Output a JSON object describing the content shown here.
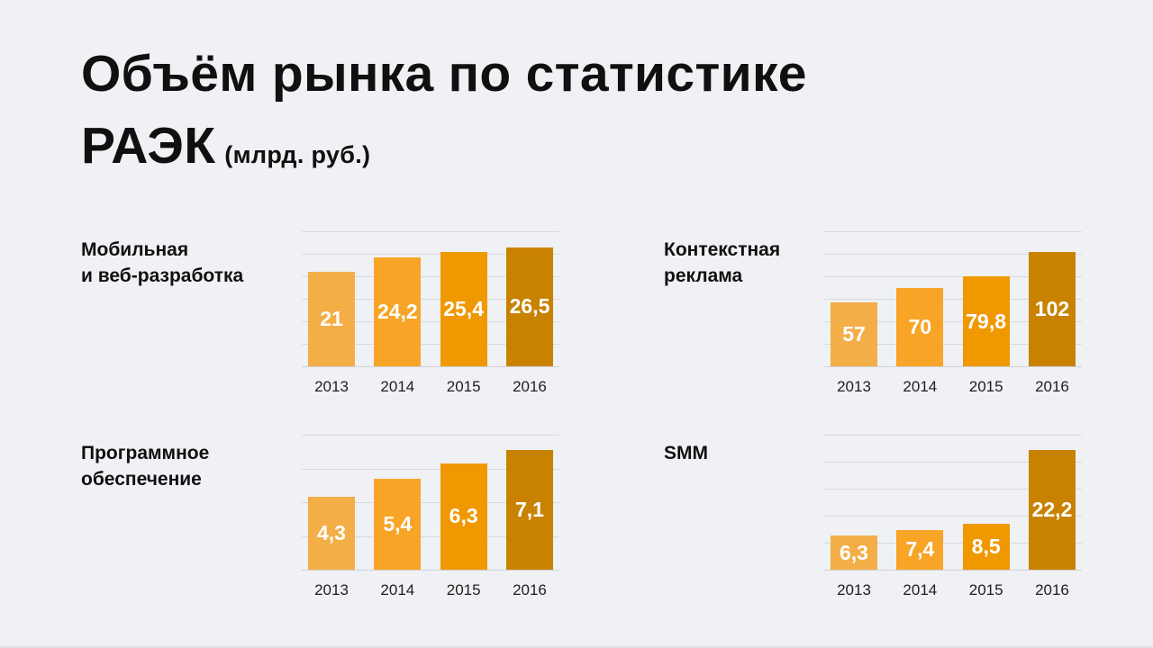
{
  "title": {
    "line1": "Объём рынка по статистике",
    "line2": "РАЭК",
    "unit": "(млрд. руб.)"
  },
  "colors": {
    "background": "#F0F1F4",
    "text": "#101010",
    "gridline": "#D7D9DD",
    "value_label": "#FFFFFF",
    "bar_series": [
      "#F4AE47",
      "#F7A427",
      "#F09800",
      "#C98200"
    ]
  },
  "chart_data": [
    {
      "type": "bar",
      "name": "mobile-and-web-development",
      "title": "Мобильная и веб-разработка",
      "title_lines": [
        "Мобильная",
        "и веб-разработка"
      ],
      "categories": [
        "2013",
        "2014",
        "2015",
        "2016"
      ],
      "values": [
        21,
        24.2,
        25.4,
        26.5
      ],
      "value_labels": [
        "21",
        "24,2",
        "25,4",
        "26,5"
      ],
      "ylim": [
        0,
        30
      ],
      "gridline_step": 5,
      "grid": true,
      "legend": false
    },
    {
      "type": "bar",
      "name": "contextual-advertising",
      "title": "Контекстная реклама",
      "title_lines": [
        "Контекстная",
        "реклама"
      ],
      "categories": [
        "2013",
        "2014",
        "2015",
        "2016"
      ],
      "values": [
        57,
        70,
        79.8,
        102
      ],
      "value_labels": [
        "57",
        "70",
        "79,8",
        "102"
      ],
      "ylim": [
        0,
        120
      ],
      "gridline_step": 20,
      "grid": true,
      "legend": false
    },
    {
      "type": "bar",
      "name": "software",
      "title": "Программное обеспечение",
      "title_lines": [
        "Программное",
        "обеспечение"
      ],
      "categories": [
        "2013",
        "2014",
        "2015",
        "2016"
      ],
      "values": [
        4.3,
        5.4,
        6.3,
        7.1
      ],
      "value_labels": [
        "4,3",
        "5,4",
        "6,3",
        "7,1"
      ],
      "ylim": [
        0,
        8
      ],
      "gridline_step": 2,
      "grid": true,
      "legend": false
    },
    {
      "type": "bar",
      "name": "smm",
      "title": "SMM",
      "title_lines": [
        "SMM"
      ],
      "categories": [
        "2013",
        "2014",
        "2015",
        "2016"
      ],
      "values": [
        6.3,
        7.4,
        8.5,
        22.2
      ],
      "value_labels": [
        "6,3",
        "7,4",
        "8,5",
        "22,2"
      ],
      "ylim": [
        0,
        25
      ],
      "gridline_step": 5,
      "grid": true,
      "legend": false
    }
  ]
}
